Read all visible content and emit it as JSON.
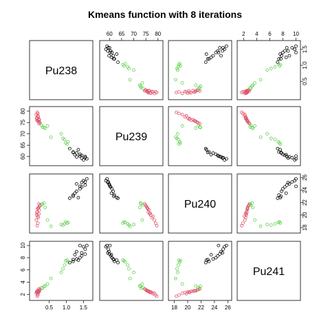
{
  "chart_data": {
    "type": "scatter-matrix",
    "title": "Kmeans function with 8 iterations",
    "variables": [
      "Pu238",
      "Pu239",
      "Pu240",
      "Pu241"
    ],
    "colors": {
      "cluster_1": "#000000",
      "cluster_2": "#DF536B",
      "cluster_3": "#61D04F"
    },
    "marker": "open-circle",
    "axes": {
      "Pu238": {
        "range": [
          0.0,
          1.7
        ],
        "ticks": [
          0.5,
          1.0,
          1.5
        ],
        "tick_labels": [
          "0.5",
          "1.0",
          "1.5"
        ]
      },
      "Pu239": {
        "range": [
          57,
          81
        ],
        "ticks": [
          60,
          65,
          70,
          75,
          80
        ],
        "tick_labels": [
          "60",
          "65",
          "70",
          "75",
          "80"
        ]
      },
      "Pu240": {
        "range": [
          17.5,
          26.2
        ],
        "ticks": [
          18,
          20,
          22,
          24,
          26
        ],
        "tick_labels": [
          "18",
          "20",
          "22",
          "24",
          "26"
        ]
      },
      "Pu241": {
        "range": [
          1.4,
          10.3
        ],
        "ticks": [
          2,
          4,
          6,
          8,
          10
        ],
        "tick_labels": [
          "2",
          "4",
          "6",
          "8",
          "10"
        ]
      }
    },
    "tick_sides": {
      "Pu238": {
        "side": "bottom",
        "panel_col": 0,
        "panel_row": 3
      },
      "Pu239": {
        "side": "top",
        "panel_col": 1,
        "panel_row": 0
      },
      "Pu240": {
        "side": "bottom",
        "panel_col": 2,
        "panel_row": 3
      },
      "Pu241": {
        "side": "top",
        "panel_col": 3,
        "panel_row": 0
      }
    },
    "series": [
      {
        "cluster": 1,
        "color": "#000000",
        "points": [
          [
            1.55,
            60.0,
            24.8,
            8.6
          ],
          [
            1.4,
            61.0,
            24.2,
            8.0
          ],
          [
            1.3,
            61.5,
            23.8,
            7.8
          ],
          [
            1.2,
            62.0,
            23.2,
            7.4
          ],
          [
            1.55,
            59.5,
            25.3,
            9.4
          ],
          [
            1.6,
            59.0,
            25.8,
            10.0
          ],
          [
            1.45,
            60.5,
            24.5,
            8.3
          ],
          [
            1.35,
            63.0,
            22.8,
            7.6
          ],
          [
            1.5,
            58.5,
            25.5,
            9.8
          ],
          [
            1.25,
            60.8,
            23.5,
            8.5
          ],
          [
            1.1,
            63.5,
            22.7,
            7.2
          ],
          [
            1.3,
            59.8,
            25.0,
            9.0
          ],
          [
            1.4,
            60.2,
            24.6,
            10.0
          ],
          [
            1.45,
            59.3,
            25.2,
            8.8
          ],
          [
            1.2,
            61.8,
            23.0,
            7.7
          ]
        ]
      },
      {
        "cluster": 2,
        "color": "#DF536B",
        "points": [
          [
            0.15,
            79.5,
            18.3,
            1.7
          ],
          [
            0.17,
            79.0,
            18.7,
            1.9
          ],
          [
            0.12,
            78.5,
            19.2,
            2.2
          ],
          [
            0.18,
            77.5,
            19.6,
            2.3
          ],
          [
            0.2,
            76.5,
            20.2,
            2.4
          ],
          [
            0.14,
            76.0,
            20.5,
            2.5
          ],
          [
            0.16,
            75.8,
            21.0,
            2.6
          ],
          [
            0.19,
            75.5,
            21.2,
            2.6
          ],
          [
            0.21,
            76.2,
            20.8,
            2.5
          ],
          [
            0.13,
            77.0,
            20.0,
            2.4
          ],
          [
            0.22,
            75.2,
            21.4,
            2.7
          ],
          [
            0.17,
            78.0,
            19.8,
            2.1
          ],
          [
            0.23,
            74.8,
            21.6,
            2.8
          ],
          [
            0.15,
            76.8,
            20.3,
            2.3
          ],
          [
            0.18,
            75.6,
            21.1,
            2.6
          ],
          [
            0.2,
            74.5,
            21.8,
            2.9
          ]
        ]
      },
      {
        "cluster": 3,
        "color": "#61D04F",
        "points": [
          [
            0.85,
            70.0,
            18.5,
            5.6
          ],
          [
            0.45,
            73.5,
            19.2,
            3.7
          ],
          [
            0.38,
            72.5,
            21.2,
            3.4
          ],
          [
            0.3,
            73.0,
            21.8,
            3.0
          ],
          [
            0.55,
            68.5,
            18.2,
            4.6
          ],
          [
            0.95,
            67.5,
            18.6,
            6.8
          ],
          [
            1.05,
            66.5,
            18.8,
            7.3
          ],
          [
            0.9,
            68.0,
            18.4,
            6.2
          ],
          [
            0.98,
            66.0,
            18.9,
            7.5
          ],
          [
            1.02,
            65.5,
            18.7,
            7.6
          ],
          [
            0.28,
            73.8,
            21.6,
            3.1
          ],
          [
            0.35,
            72.8,
            21.9,
            3.3
          ]
        ]
      }
    ]
  }
}
